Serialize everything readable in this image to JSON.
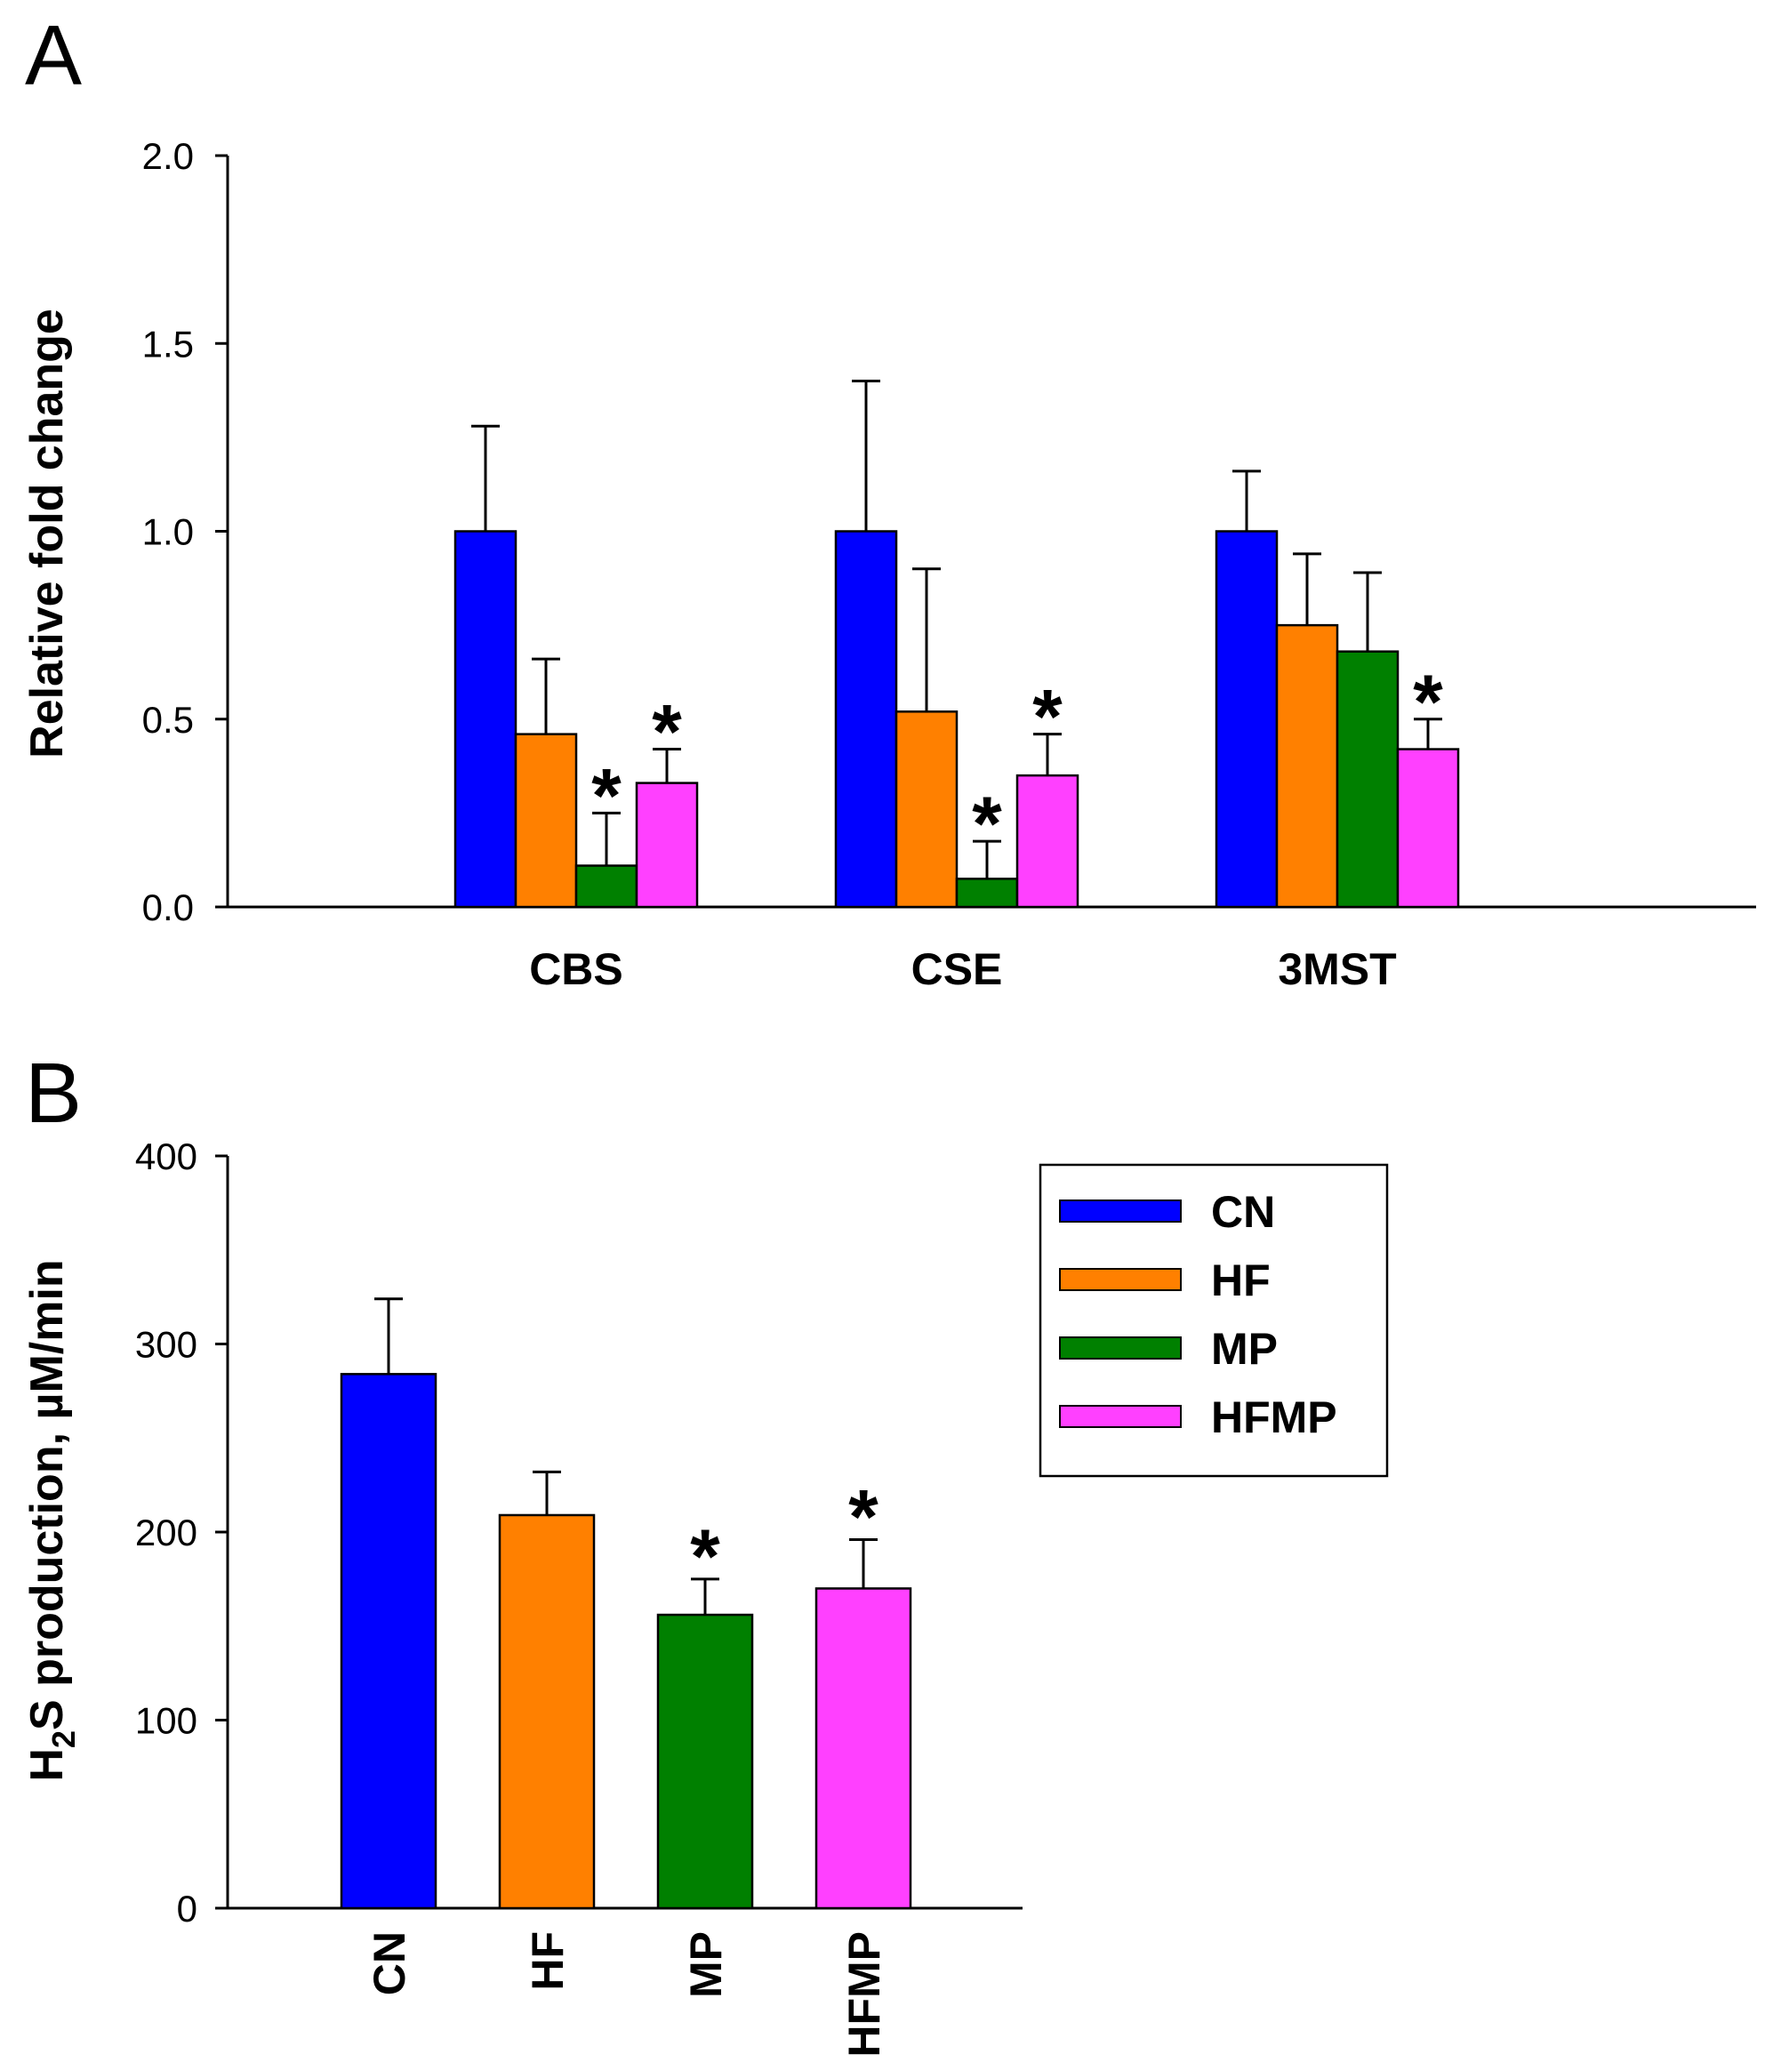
{
  "chart_data": [
    {
      "panel": "A",
      "type": "bar",
      "title": "",
      "xlabel": "",
      "ylabel": "Relative fold change",
      "ylim": [
        0,
        2.0
      ],
      "yticks": [
        "0.0",
        "0.5",
        "1.0",
        "1.5",
        "2.0"
      ],
      "categories": [
        "CBS",
        "CSE",
        "3MST"
      ],
      "series": [
        {
          "name": "CN",
          "values": [
            1.0,
            1.0,
            1.0
          ],
          "errors": [
            0.28,
            0.4,
            0.16
          ],
          "significant": [
            false,
            false,
            false
          ]
        },
        {
          "name": "HF",
          "values": [
            0.46,
            0.52,
            0.75
          ],
          "errors": [
            0.2,
            0.38,
            0.19
          ],
          "significant": [
            false,
            false,
            false
          ]
        },
        {
          "name": "MP",
          "values": [
            0.11,
            0.075,
            0.68
          ],
          "errors": [
            0.14,
            0.1,
            0.21
          ],
          "significant": [
            true,
            true,
            false
          ]
        },
        {
          "name": "HFMP",
          "values": [
            0.33,
            0.35,
            0.42
          ],
          "errors": [
            0.09,
            0.11,
            0.08
          ],
          "significant": [
            true,
            true,
            true
          ]
        }
      ],
      "significance_marker": "*",
      "grid": false
    },
    {
      "panel": "B",
      "type": "bar",
      "title": "",
      "xlabel": "",
      "ylabel": "H2S production, µM/min",
      "ylabel_parts": {
        "pre": "H",
        "sub": "2",
        "post": "S production, µM/min"
      },
      "ylim": [
        0,
        400
      ],
      "yticks": [
        "0",
        "100",
        "200",
        "300",
        "400"
      ],
      "categories": [
        "CN",
        "HF",
        "MP",
        "HFMP"
      ],
      "values": [
        284,
        209,
        156,
        170
      ],
      "errors": [
        40,
        23,
        19,
        26
      ],
      "significant": [
        false,
        false,
        true,
        true
      ],
      "significance_marker": "*",
      "grid": false,
      "legend": {
        "placement": "top-right",
        "items": [
          {
            "label": "CN",
            "color": "#0000ff"
          },
          {
            "label": "HF",
            "color": "#ff8000"
          },
          {
            "label": "MP",
            "color": "#008000"
          },
          {
            "label": "HFMP",
            "color": "#ff40ff"
          }
        ]
      }
    }
  ]
}
